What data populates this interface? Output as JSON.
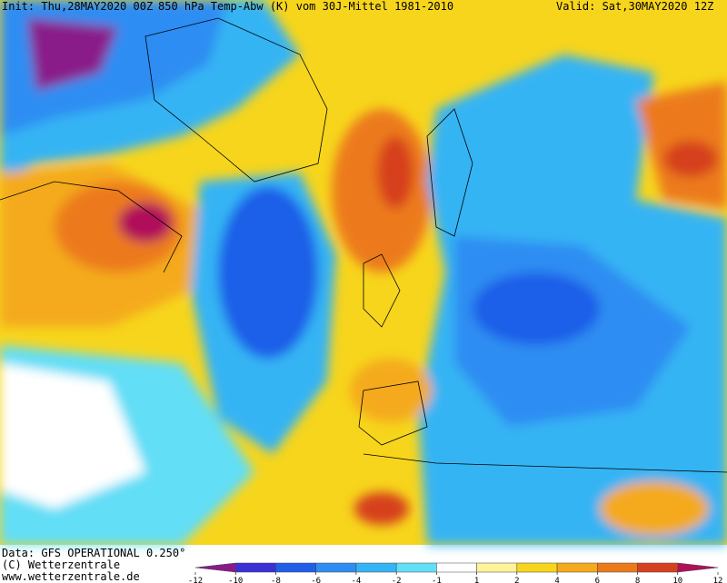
{
  "header": {
    "init": "Init: Thu,28MAY2020 00Z",
    "title": "850 hPa Temp-Abw (K) vom 30J-Mittel 1981-2010",
    "valid": "Valid: Sat,30MAY2020 12Z"
  },
  "footer": {
    "source": "Data: GFS OPERATIONAL 0.250°",
    "copyright": "(C) Wetterzentrale",
    "url": "www.wetterzentrale.de"
  },
  "legend": {
    "ticks": [
      -12,
      -10,
      -8,
      -6,
      -4,
      -2,
      -1,
      1,
      2,
      4,
      6,
      8,
      10,
      12
    ],
    "colors": [
      "#8a1a8a",
      "#3b2fd6",
      "#1e5ee8",
      "#2f8df2",
      "#34b4f4",
      "#62def6",
      "#ffffff",
      "#fff39a",
      "#f7d51c",
      "#f4aa1a",
      "#ec7a1c",
      "#d6401e",
      "#b0105a"
    ]
  }
}
